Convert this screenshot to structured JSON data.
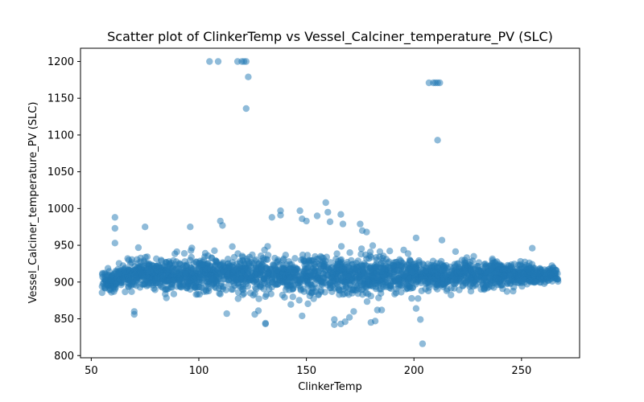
{
  "chart_data": {
    "type": "scatter",
    "title": "Scatter plot of ClinkerTemp vs Vessel_Calciner_temperature_PV (SLC)",
    "xlabel": "ClinkerTemp",
    "ylabel": "Vessel_Calciner_temperature_PV (SLC)",
    "xlim": [
      45,
      277
    ],
    "ylim": [
      797,
      1218
    ],
    "xticks": [
      50,
      100,
      150,
      200,
      250
    ],
    "yticks": [
      800,
      850,
      900,
      950,
      1000,
      1050,
      1100,
      1150,
      1200
    ],
    "grid": false,
    "marker_color": "#1f77b4",
    "marker_alpha": 0.5,
    "dense_band": {
      "note_x_range": [
        55,
        267
      ],
      "center_y": 910
    },
    "points": [
      {
        "x": 105,
        "y": 1200
      },
      {
        "x": 109,
        "y": 1200
      },
      {
        "x": 118,
        "y": 1200
      },
      {
        "x": 120,
        "y": 1200
      },
      {
        "x": 121,
        "y": 1200
      },
      {
        "x": 122,
        "y": 1200
      },
      {
        "x": 123,
        "y": 1179
      },
      {
        "x": 122,
        "y": 1136
      },
      {
        "x": 207,
        "y": 1171
      },
      {
        "x": 209,
        "y": 1171
      },
      {
        "x": 210,
        "y": 1171
      },
      {
        "x": 211,
        "y": 1171
      },
      {
        "x": 212,
        "y": 1171
      },
      {
        "x": 211,
        "y": 1093
      },
      {
        "x": 61,
        "y": 988
      },
      {
        "x": 61,
        "y": 973
      },
      {
        "x": 61,
        "y": 953
      },
      {
        "x": 75,
        "y": 975
      },
      {
        "x": 96,
        "y": 975
      },
      {
        "x": 110,
        "y": 983
      },
      {
        "x": 111,
        "y": 977
      },
      {
        "x": 134,
        "y": 988
      },
      {
        "x": 138,
        "y": 997
      },
      {
        "x": 138,
        "y": 991
      },
      {
        "x": 147,
        "y": 997
      },
      {
        "x": 148,
        "y": 986
      },
      {
        "x": 150,
        "y": 983
      },
      {
        "x": 155,
        "y": 990
      },
      {
        "x": 159,
        "y": 1008
      },
      {
        "x": 160,
        "y": 995
      },
      {
        "x": 161,
        "y": 982
      },
      {
        "x": 166,
        "y": 992
      },
      {
        "x": 167,
        "y": 979
      },
      {
        "x": 175,
        "y": 979
      },
      {
        "x": 176,
        "y": 970
      },
      {
        "x": 178,
        "y": 968
      },
      {
        "x": 201,
        "y": 960
      },
      {
        "x": 213,
        "y": 957
      },
      {
        "x": 255,
        "y": 946
      },
      {
        "x": 70,
        "y": 860
      },
      {
        "x": 70,
        "y": 856
      },
      {
        "x": 113,
        "y": 857
      },
      {
        "x": 126,
        "y": 856
      },
      {
        "x": 131,
        "y": 844
      },
      {
        "x": 131,
        "y": 843
      },
      {
        "x": 148,
        "y": 854
      },
      {
        "x": 163,
        "y": 849
      },
      {
        "x": 163,
        "y": 842
      },
      {
        "x": 166,
        "y": 843
      },
      {
        "x": 168,
        "y": 846
      },
      {
        "x": 170,
        "y": 852
      },
      {
        "x": 172,
        "y": 860
      },
      {
        "x": 180,
        "y": 845
      },
      {
        "x": 182,
        "y": 847
      },
      {
        "x": 183,
        "y": 862
      },
      {
        "x": 185,
        "y": 862
      },
      {
        "x": 201,
        "y": 864
      },
      {
        "x": 203,
        "y": 849
      },
      {
        "x": 204,
        "y": 816
      }
    ]
  }
}
